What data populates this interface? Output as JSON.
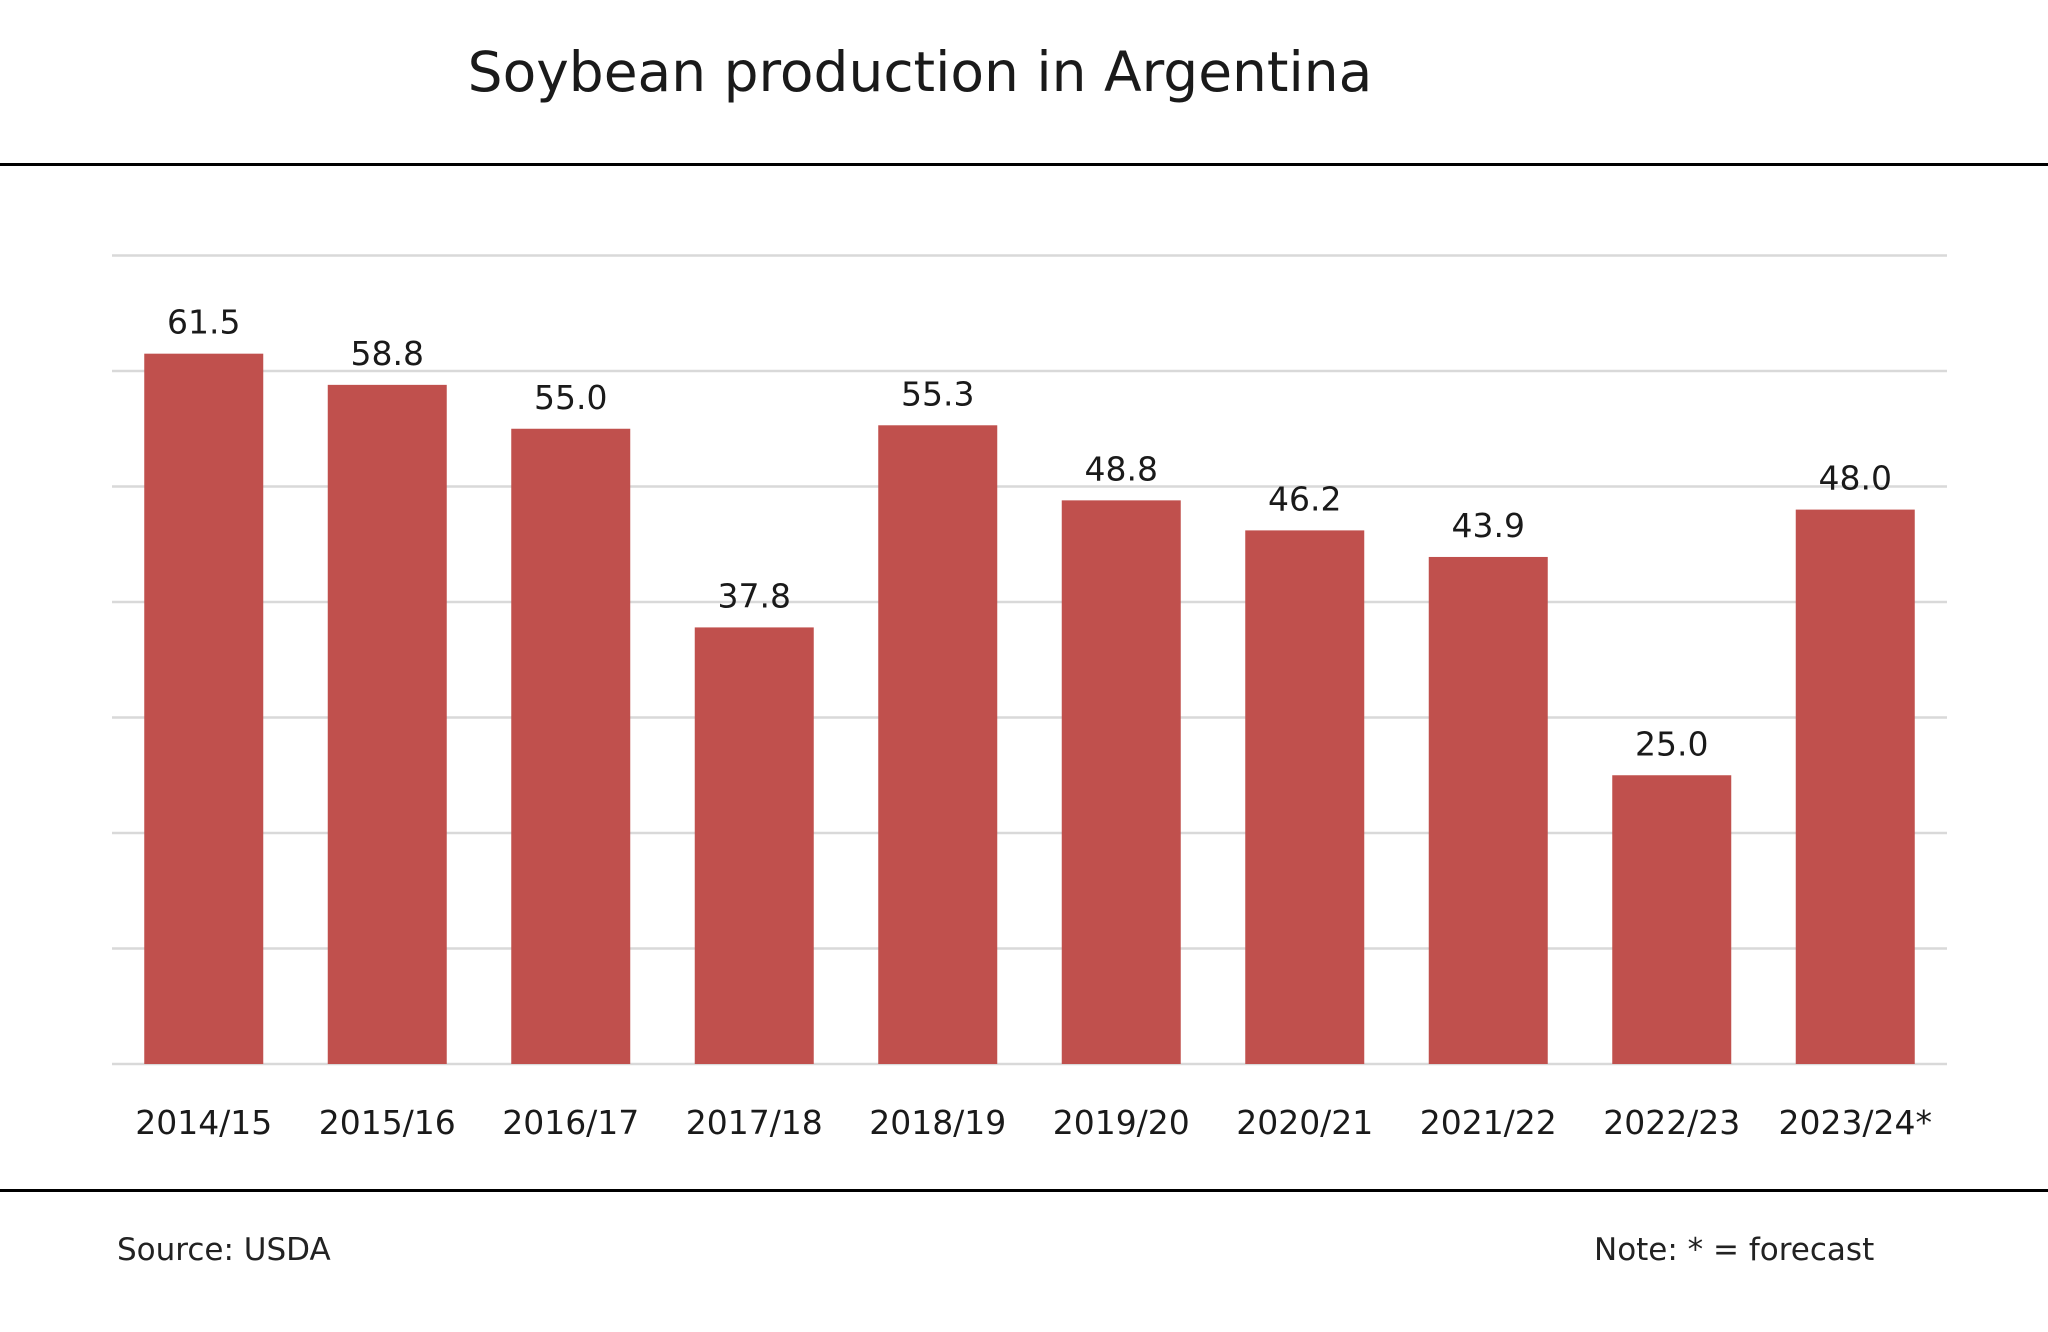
{
  "title": "Soybean production in Argentina",
  "footer": {
    "source": "Source:  USDA",
    "note": "Note: * = forecast"
  },
  "colors": {
    "bar": "#c0504d",
    "grid": "#d9d9d9",
    "rule": "#000000"
  },
  "chart_data": {
    "type": "bar",
    "categories": [
      "2014/15",
      "2015/16",
      "2016/17",
      "2017/18",
      "2018/19",
      "2019/20",
      "2020/21",
      "2021/22",
      "2022/23",
      "2023/24*"
    ],
    "values": [
      61.5,
      58.8,
      55.0,
      37.8,
      55.3,
      48.8,
      46.2,
      43.9,
      25.0,
      48.0
    ],
    "data_labels": [
      "61.5",
      "58.8",
      "55.0",
      "37.8",
      "55.3",
      "48.8",
      "46.2",
      "43.9",
      "25.0",
      "48.0"
    ],
    "ylim": [
      0,
      70
    ],
    "grid_step": 10,
    "grid": true,
    "y_tick_labels_shown": false,
    "title": "Soybean production in Argentina",
    "xlabel": "",
    "ylabel": ""
  }
}
